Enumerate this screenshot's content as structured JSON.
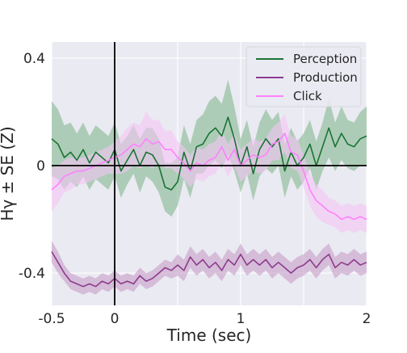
{
  "chart_data": {
    "type": "line",
    "xlabel": "Time (sec)",
    "ylabel": "Hγ ± SE (Z)",
    "xlim": [
      -0.5,
      2.0
    ],
    "ylim": [
      -0.52,
      0.46
    ],
    "x_ticks": [
      -0.5,
      0,
      1,
      2
    ],
    "x_tick_labels": [
      "-0.5",
      "0",
      "1",
      "2"
    ],
    "y_ticks": [
      0.4,
      0,
      -0.4
    ],
    "y_tick_labels": [
      "0.4",
      "0",
      "-0.4"
    ],
    "grid": true,
    "background": "#eaeaf2",
    "reference_lines": {
      "x": 0,
      "y": 0
    },
    "legend_position": "top-right",
    "series": [
      {
        "name": "Perception",
        "color": "#1a7335",
        "band_color": "#84b890",
        "x": [
          -0.5,
          -0.45,
          -0.4,
          -0.35,
          -0.3,
          -0.25,
          -0.2,
          -0.15,
          -0.1,
          -0.05,
          0,
          0.05,
          0.1,
          0.15,
          0.2,
          0.25,
          0.3,
          0.35,
          0.4,
          0.45,
          0.5,
          0.55,
          0.6,
          0.65,
          0.7,
          0.75,
          0.8,
          0.85,
          0.9,
          0.95,
          1.0,
          1.05,
          1.1,
          1.15,
          1.2,
          1.25,
          1.3,
          1.35,
          1.4,
          1.45,
          1.5,
          1.55,
          1.6,
          1.65,
          1.7,
          1.75,
          1.8,
          1.85,
          1.9,
          1.95,
          2.0
        ],
        "values": [
          0.1,
          0.08,
          0.03,
          0.05,
          0.02,
          0.06,
          0.01,
          0.05,
          0.03,
          0.01,
          0.06,
          -0.02,
          0.02,
          0.06,
          0.0,
          0.05,
          0.04,
          0.0,
          -0.08,
          -0.09,
          -0.06,
          0.05,
          -0.02,
          0.07,
          0.08,
          0.12,
          0.14,
          0.11,
          0.18,
          0.1,
          0.0,
          0.07,
          -0.03,
          0.06,
          0.1,
          0.07,
          0.1,
          -0.02,
          0.05,
          0.0,
          0.03,
          0.08,
          0.0,
          0.07,
          0.14,
          0.07,
          0.12,
          0.08,
          0.07,
          0.1,
          0.11
        ],
        "se": [
          0.14,
          0.13,
          0.12,
          0.11,
          0.1,
          0.1,
          0.1,
          0.1,
          0.1,
          0.1,
          0.1,
          0.1,
          0.09,
          0.09,
          0.1,
          0.09,
          0.1,
          0.1,
          0.09,
          0.1,
          0.09,
          0.1,
          0.1,
          0.1,
          0.11,
          0.12,
          0.12,
          0.12,
          0.14,
          0.12,
          0.1,
          0.1,
          0.1,
          0.1,
          0.11,
          0.1,
          0.1,
          0.1,
          0.09,
          0.09,
          0.09,
          0.09,
          0.09,
          0.09,
          0.11,
          0.09,
          0.1,
          0.09,
          0.09,
          0.1,
          0.11
        ]
      },
      {
        "name": "Production",
        "color": "#8e3b8e",
        "band_color": "#c79cc7",
        "x": [
          -0.5,
          -0.45,
          -0.4,
          -0.35,
          -0.3,
          -0.25,
          -0.2,
          -0.15,
          -0.1,
          -0.05,
          0,
          0.05,
          0.1,
          0.15,
          0.2,
          0.25,
          0.3,
          0.35,
          0.4,
          0.45,
          0.5,
          0.55,
          0.6,
          0.65,
          0.7,
          0.75,
          0.8,
          0.85,
          0.9,
          0.95,
          1.0,
          1.05,
          1.1,
          1.15,
          1.2,
          1.25,
          1.3,
          1.35,
          1.4,
          1.45,
          1.5,
          1.55,
          1.6,
          1.65,
          1.7,
          1.75,
          1.8,
          1.85,
          1.9,
          1.95,
          2.0
        ],
        "values": [
          -0.32,
          -0.36,
          -0.4,
          -0.43,
          -0.44,
          -0.45,
          -0.44,
          -0.45,
          -0.43,
          -0.44,
          -0.42,
          -0.44,
          -0.43,
          -0.44,
          -0.41,
          -0.43,
          -0.42,
          -0.4,
          -0.38,
          -0.39,
          -0.37,
          -0.39,
          -0.34,
          -0.37,
          -0.35,
          -0.38,
          -0.36,
          -0.39,
          -0.35,
          -0.37,
          -0.33,
          -0.37,
          -0.35,
          -0.37,
          -0.35,
          -0.38,
          -0.36,
          -0.38,
          -0.4,
          -0.38,
          -0.37,
          -0.35,
          -0.38,
          -0.35,
          -0.33,
          -0.38,
          -0.36,
          -0.37,
          -0.35,
          -0.37,
          -0.36
        ],
        "se": [
          0.04,
          0.04,
          0.03,
          0.03,
          0.03,
          0.03,
          0.03,
          0.03,
          0.03,
          0.03,
          0.03,
          0.03,
          0.03,
          0.03,
          0.03,
          0.03,
          0.03,
          0.03,
          0.03,
          0.03,
          0.04,
          0.04,
          0.04,
          0.04,
          0.04,
          0.04,
          0.04,
          0.04,
          0.04,
          0.04,
          0.04,
          0.04,
          0.04,
          0.04,
          0.04,
          0.04,
          0.04,
          0.04,
          0.04,
          0.04,
          0.04,
          0.04,
          0.04,
          0.04,
          0.04,
          0.04,
          0.04,
          0.04,
          0.04,
          0.04,
          0.04
        ]
      },
      {
        "name": "Click",
        "color": "#ff80ff",
        "band_color": "#f5c4f5",
        "x": [
          -0.5,
          -0.45,
          -0.4,
          -0.35,
          -0.3,
          -0.25,
          -0.2,
          -0.15,
          -0.1,
          -0.05,
          0,
          0.05,
          0.1,
          0.15,
          0.2,
          0.25,
          0.3,
          0.35,
          0.4,
          0.45,
          0.5,
          0.55,
          0.6,
          0.65,
          0.7,
          0.75,
          0.8,
          0.85,
          0.9,
          0.95,
          1.0,
          1.05,
          1.1,
          1.15,
          1.2,
          1.25,
          1.3,
          1.35,
          1.4,
          1.45,
          1.5,
          1.55,
          1.6,
          1.65,
          1.7,
          1.75,
          1.8,
          1.85,
          1.9,
          1.95,
          2.0
        ],
        "values": [
          -0.09,
          -0.07,
          -0.04,
          -0.03,
          -0.02,
          -0.02,
          -0.01,
          0.0,
          0.01,
          0.02,
          0.03,
          0.04,
          0.06,
          0.08,
          0.07,
          0.1,
          0.08,
          0.09,
          0.06,
          0.06,
          0.03,
          0.01,
          -0.02,
          0.01,
          0.0,
          0.02,
          0.03,
          0.07,
          0.02,
          0.06,
          0.0,
          0.02,
          0.04,
          0.03,
          0.04,
          0.08,
          0.09,
          0.12,
          0.05,
          0.04,
          -0.02,
          -0.09,
          -0.13,
          -0.15,
          -0.17,
          -0.18,
          -0.2,
          -0.19,
          -0.2,
          -0.19,
          -0.2
        ],
        "se": [
          0.08,
          0.07,
          0.06,
          0.06,
          0.05,
          0.05,
          0.05,
          0.05,
          0.05,
          0.05,
          0.06,
          0.07,
          0.08,
          0.08,
          0.08,
          0.1,
          0.09,
          0.08,
          0.07,
          0.07,
          0.06,
          0.06,
          0.06,
          0.06,
          0.06,
          0.06,
          0.06,
          0.06,
          0.06,
          0.06,
          0.06,
          0.06,
          0.06,
          0.06,
          0.06,
          0.06,
          0.07,
          0.07,
          0.06,
          0.06,
          0.06,
          0.06,
          0.06,
          0.06,
          0.05,
          0.05,
          0.05,
          0.05,
          0.05,
          0.05,
          0.05
        ]
      }
    ]
  }
}
